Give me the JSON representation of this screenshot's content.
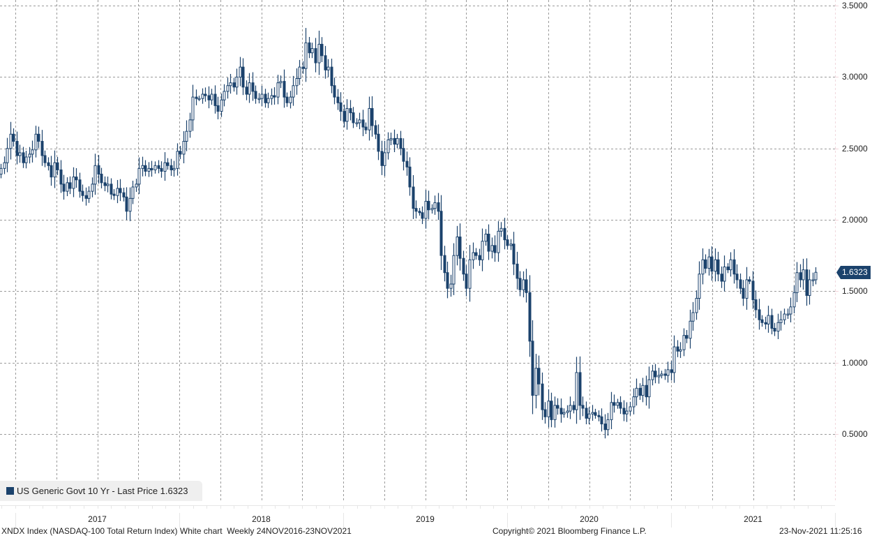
{
  "chart_data": {
    "type": "candlestick",
    "title": "",
    "frequency": "Weekly",
    "date_range": "24NOV2016-23NOV2021",
    "ylim": [
      0.03,
      3.54
    ],
    "y_ticks": [
      "3.5000",
      "3.0000",
      "2.5000",
      "2.0000",
      "1.5000",
      "1.0000",
      "0.5000"
    ],
    "y_tick_values": [
      3.5,
      3.0,
      2.5,
      2.0,
      1.5,
      1.0,
      0.5
    ],
    "x_year_labels": [
      "2017",
      "2018",
      "2019",
      "2020",
      "2021"
    ],
    "grid": true,
    "legend_position": "bottom-left",
    "up_color": "#ffffff",
    "down_color": "#1b426c",
    "line_color": "#1b426c",
    "series": [
      {
        "name": "US Generic Govt 10 Yr",
        "first_open": 2.32,
        "close": [
          2.36,
          2.4,
          2.5,
          2.6,
          2.55,
          2.45,
          2.47,
          2.4,
          2.44,
          2.46,
          2.49,
          2.6,
          2.55,
          2.45,
          2.4,
          2.38,
          2.3,
          2.4,
          2.35,
          2.25,
          2.2,
          2.26,
          2.22,
          2.3,
          2.28,
          2.2,
          2.17,
          2.15,
          2.2,
          2.25,
          2.38,
          2.32,
          2.26,
          2.24,
          2.25,
          2.18,
          2.17,
          2.22,
          2.19,
          2.16,
          2.06,
          2.15,
          2.23,
          2.25,
          2.36,
          2.38,
          2.34,
          2.36,
          2.35,
          2.38,
          2.36,
          2.34,
          2.4,
          2.38,
          2.35,
          2.36,
          2.48,
          2.46,
          2.55,
          2.62,
          2.7,
          2.86,
          2.85,
          2.85,
          2.88,
          2.87,
          2.84,
          2.88,
          2.8,
          2.76,
          2.84,
          2.9,
          2.94,
          2.96,
          2.93,
          3.0,
          3.07,
          2.93,
          2.88,
          2.96,
          2.9,
          2.85,
          2.85,
          2.88,
          2.82,
          2.85,
          2.87,
          2.86,
          2.96,
          2.97,
          2.86,
          2.82,
          2.86,
          2.94,
          2.99,
          3.07,
          3.06,
          3.24,
          3.17,
          3.2,
          3.1,
          3.23,
          3.15,
          3.05,
          3.07,
          2.94,
          2.86,
          2.82,
          2.76,
          2.69,
          2.78,
          2.75,
          2.68,
          2.68,
          2.7,
          2.65,
          2.63,
          2.78,
          2.66,
          2.6,
          2.48,
          2.38,
          2.47,
          2.56,
          2.57,
          2.53,
          2.57,
          2.5,
          2.41,
          2.37,
          2.23,
          2.08,
          2.06,
          2.05,
          2.01,
          2.13,
          2.07,
          2.08,
          2.12,
          2.06,
          1.75,
          1.63,
          1.52,
          1.55,
          1.75,
          1.88,
          1.73,
          1.62,
          1.52,
          1.72,
          1.77,
          1.75,
          1.72,
          1.85,
          1.9,
          1.78,
          1.82,
          1.77,
          1.92,
          1.94,
          1.86,
          1.82,
          1.83,
          1.69,
          1.59,
          1.51,
          1.58,
          1.49,
          1.15,
          0.77,
          0.96,
          0.85,
          0.67,
          0.62,
          0.73,
          0.6,
          0.7,
          0.68,
          0.64,
          0.65,
          0.66,
          0.7,
          0.67,
          0.93,
          0.7,
          0.68,
          0.61,
          0.64,
          0.65,
          0.63,
          0.62,
          0.57,
          0.53,
          0.6,
          0.72,
          0.7,
          0.72,
          0.68,
          0.64,
          0.66,
          0.69,
          0.76,
          0.82,
          0.77,
          0.84,
          0.76,
          0.88,
          0.94,
          0.9,
          0.91,
          0.92,
          0.91,
          0.95,
          0.93,
          1.11,
          1.08,
          1.09,
          1.19,
          1.17,
          1.29,
          1.35,
          1.45,
          1.62,
          1.72,
          1.66,
          1.74,
          1.64,
          1.72,
          1.62,
          1.57,
          1.67,
          1.65,
          1.72,
          1.62,
          1.58,
          1.52,
          1.45,
          1.58,
          1.57,
          1.44,
          1.37,
          1.3,
          1.28,
          1.27,
          1.33,
          1.24,
          1.22,
          1.28,
          1.3,
          1.34,
          1.34,
          1.39,
          1.49,
          1.63,
          1.58,
          1.65,
          1.47,
          1.58,
          1.58,
          1.6323
        ]
      }
    ],
    "last_price": "1.6323"
  },
  "legend": {
    "text": "US Generic Govt 10 Yr - Last Price 1.6323",
    "color": "#1b426c"
  },
  "footer": {
    "left": "XNDX Index (NASDAQ-100 Total Return Index) White chart  Weekly 24NOV2016-23NOV2021",
    "center": "Copyright© 2021 Bloomberg Finance L.P.",
    "right": "23-Nov-2021 11:25:16"
  }
}
